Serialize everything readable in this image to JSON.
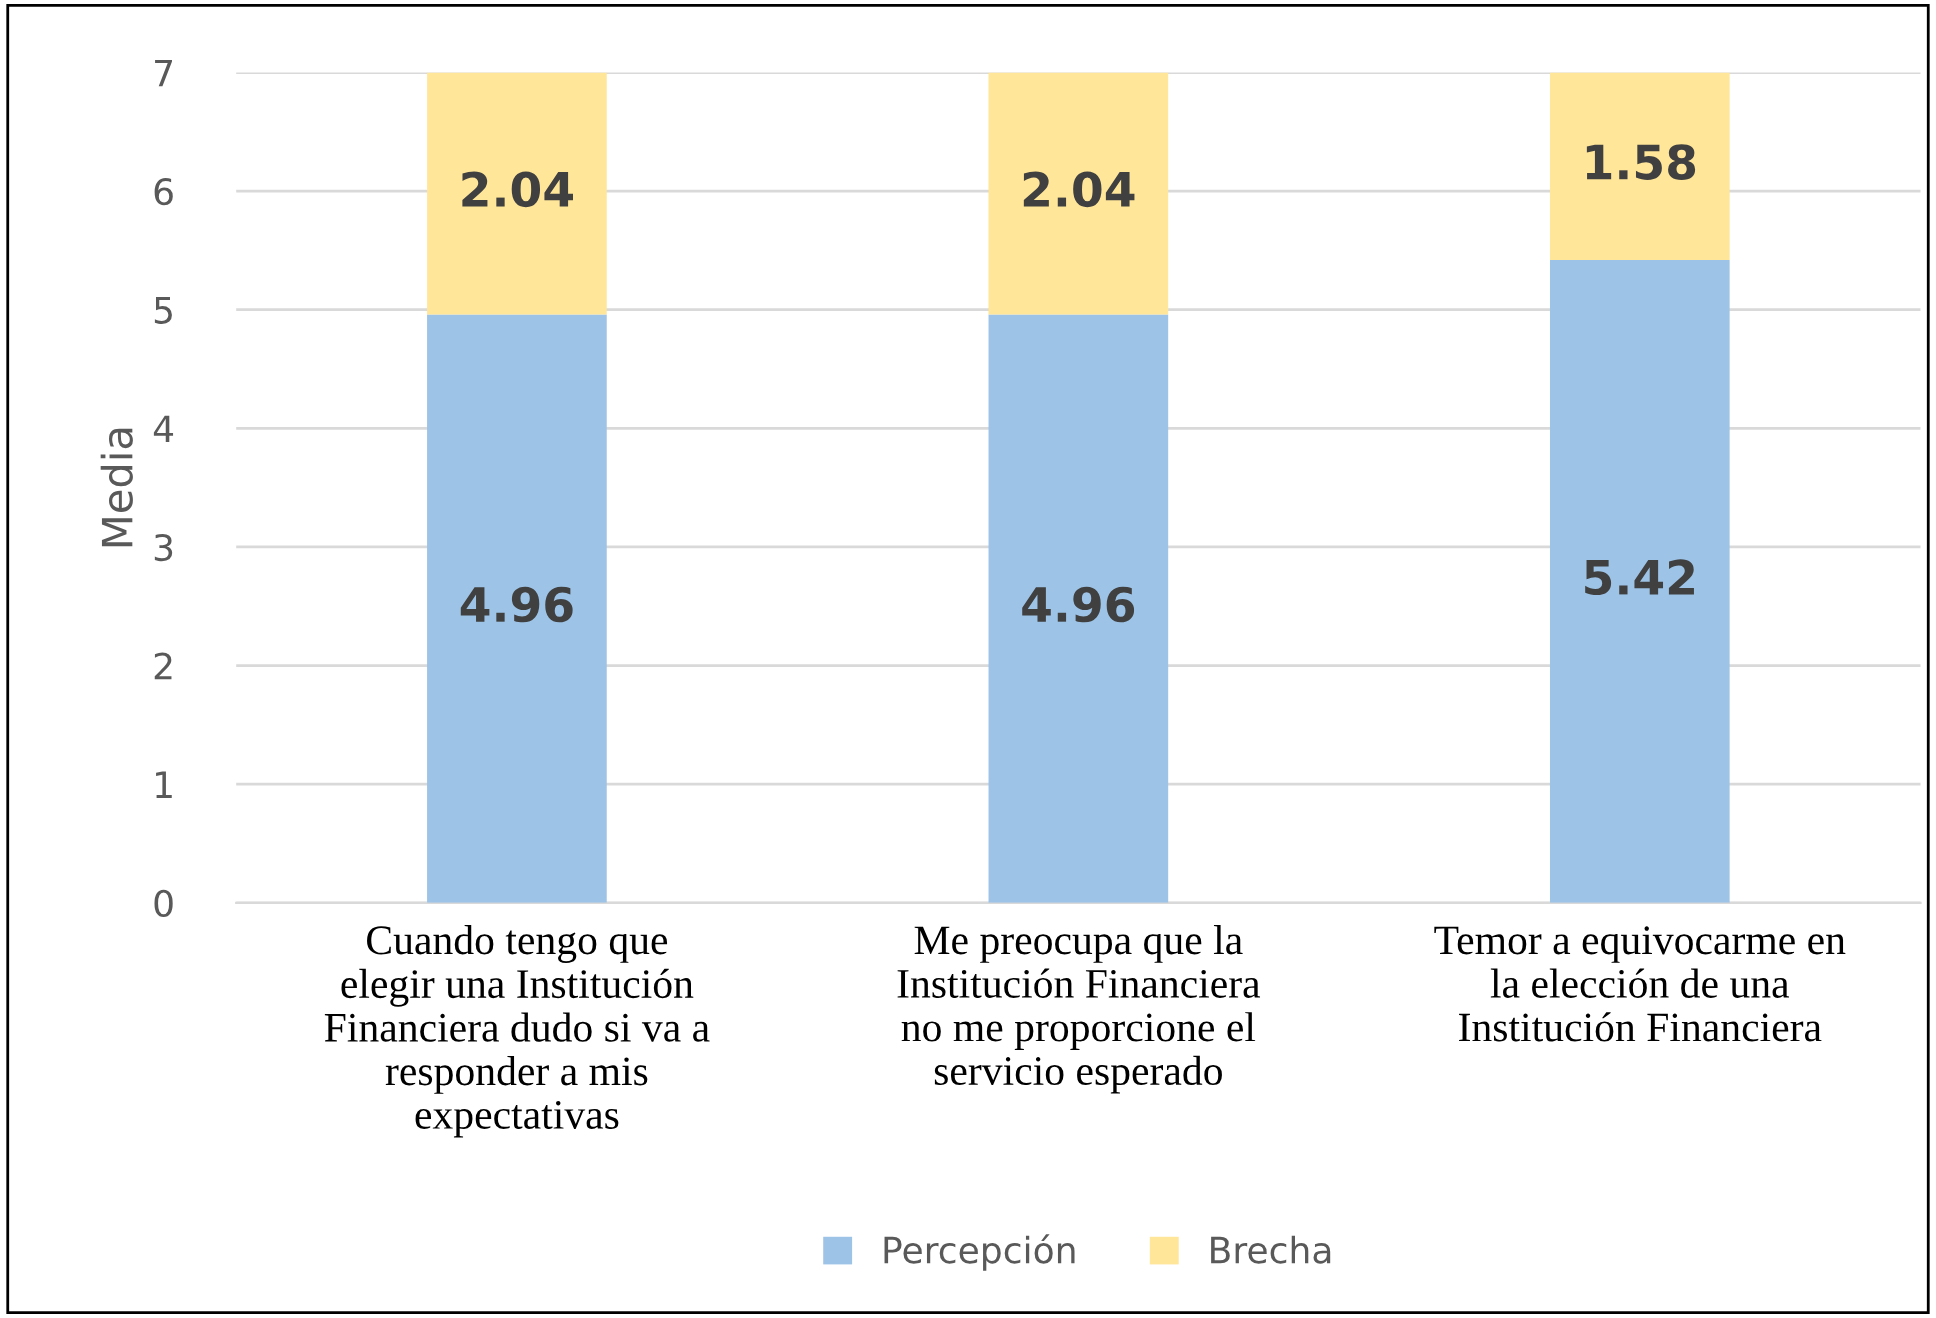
{
  "chart_data": {
    "type": "bar",
    "stacked": true,
    "ylabel": "Media",
    "categories": [
      "Cuando tengo que\nelegir una Institución\nFinanciera dudo si va a\nresponder a mis\nexpectativas",
      "Me preocupa que la\nInstitución Financiera\nno me proporcione el\nservicio esperado",
      "Temor a equivocarme en\nla elección de una\nInstitución Financiera"
    ],
    "series": [
      {
        "name": "Percepción",
        "color": "#9dc3e6",
        "values": [
          4.96,
          4.96,
          5.42
        ]
      },
      {
        "name": "Brecha",
        "color": "#ffe699",
        "values": [
          2.04,
          2.04,
          1.58
        ]
      }
    ],
    "ylim": [
      0,
      7
    ],
    "yticks": [
      0,
      1,
      2,
      3,
      4,
      5,
      6,
      7
    ],
    "grid": "y",
    "legend": "bottom",
    "data_labels": true
  }
}
